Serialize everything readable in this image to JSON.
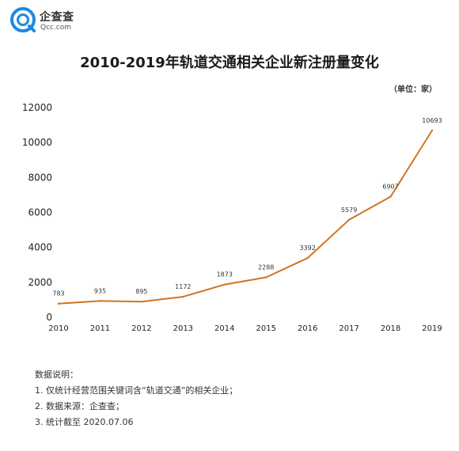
{
  "brand": {
    "name": "企查查",
    "subtitle": "Qcc.com",
    "color": "#1e88e5"
  },
  "chart_data": {
    "type": "line",
    "title": "2010-2019年轨道交通相关企业新注册量变化",
    "unit_note": "（单位：家）",
    "xlabel": "",
    "ylabel": "",
    "categories": [
      "2010",
      "2011",
      "2012",
      "2013",
      "2014",
      "2015",
      "2016",
      "2017",
      "2018",
      "2019"
    ],
    "series": [
      {
        "values": [
          783,
          935,
          895,
          1172,
          1873,
          2288,
          3392,
          5579,
          6907,
          10693
        ],
        "color": "#d4731f"
      }
    ],
    "yticks": [
      0,
      2000,
      4000,
      6000,
      8000,
      10000,
      12000
    ],
    "ylim": [
      0,
      12000
    ],
    "grid": false,
    "legend": "none",
    "data_labels": true
  },
  "notes": {
    "heading": "数据说明：",
    "items": [
      "1. 仅统计经营范围关键词含“轨道交通”的相关企业；",
      "2. 数据来源：企查查；",
      "3. 统计截至 2020.07.06"
    ]
  }
}
